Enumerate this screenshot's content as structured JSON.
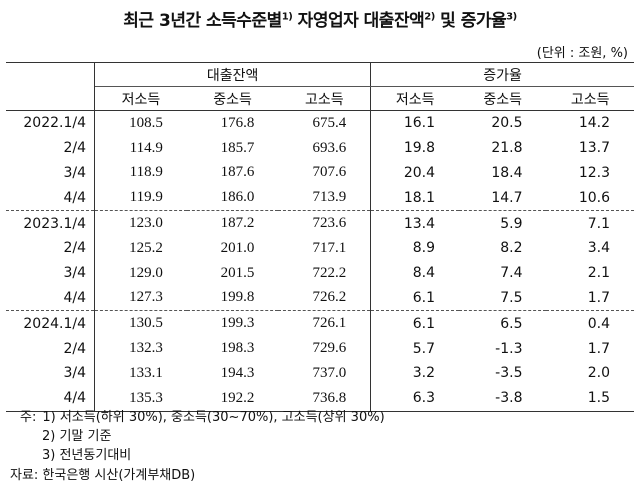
{
  "title": [
    "최근 3년간 소득수준별",
    "1)",
    " 자영업자 대출잔액",
    "2)",
    " 및 증가율",
    "3)"
  ],
  "unit": "(단위 : 조원, %)",
  "table": {
    "groups": [
      "대출잔액",
      "증가율"
    ],
    "columns": [
      "저소득",
      "중소득",
      "고소득",
      "저소득",
      "중소득",
      "고소득"
    ],
    "rows": [
      [
        "2022.1/4",
        "108.5",
        "176.8",
        "675.4",
        "16.1",
        "20.5",
        "14.2"
      ],
      [
        "2/4",
        "114.9",
        "185.7",
        "693.6",
        "19.8",
        "21.8",
        "13.7"
      ],
      [
        "3/4",
        "118.9",
        "187.6",
        "707.6",
        "20.4",
        "18.4",
        "12.3"
      ],
      [
        "4/4",
        "119.9",
        "186.0",
        "713.9",
        "18.1",
        "14.7",
        "10.6"
      ],
      [
        "2023.1/4",
        "123.0",
        "187.2",
        "723.6",
        "13.4",
        "5.9",
        "7.1"
      ],
      [
        "2/4",
        "125.2",
        "201.0",
        "717.1",
        "8.9",
        "8.2",
        "3.4"
      ],
      [
        "3/4",
        "129.0",
        "201.5",
        "722.2",
        "8.4",
        "7.4",
        "2.1"
      ],
      [
        "4/4",
        "127.3",
        "199.8",
        "726.2",
        "6.1",
        "7.5",
        "1.7"
      ],
      [
        "2024.1/4",
        "130.5",
        "199.3",
        "726.1",
        "6.1",
        "6.5",
        "0.4"
      ],
      [
        "2/4",
        "132.3",
        "198.3",
        "729.6",
        "5.7",
        "-1.3",
        "1.7"
      ],
      [
        "3/4",
        "133.1",
        "194.3",
        "737.0",
        "3.2",
        "-3.5",
        "2.0"
      ],
      [
        "4/4",
        "135.3",
        "192.2",
        "736.8",
        "6.3",
        "-3.8",
        "1.5"
      ]
    ]
  },
  "notes": {
    "label": "주:",
    "items": [
      "1) 저소득(하위 30%), 중소득(30~70%), 고소득(상위 30%)",
      "2) 기말 기준",
      "3) 전년동기대비"
    ]
  },
  "source": "자료: 한국은행 시산(가계부채DB)"
}
